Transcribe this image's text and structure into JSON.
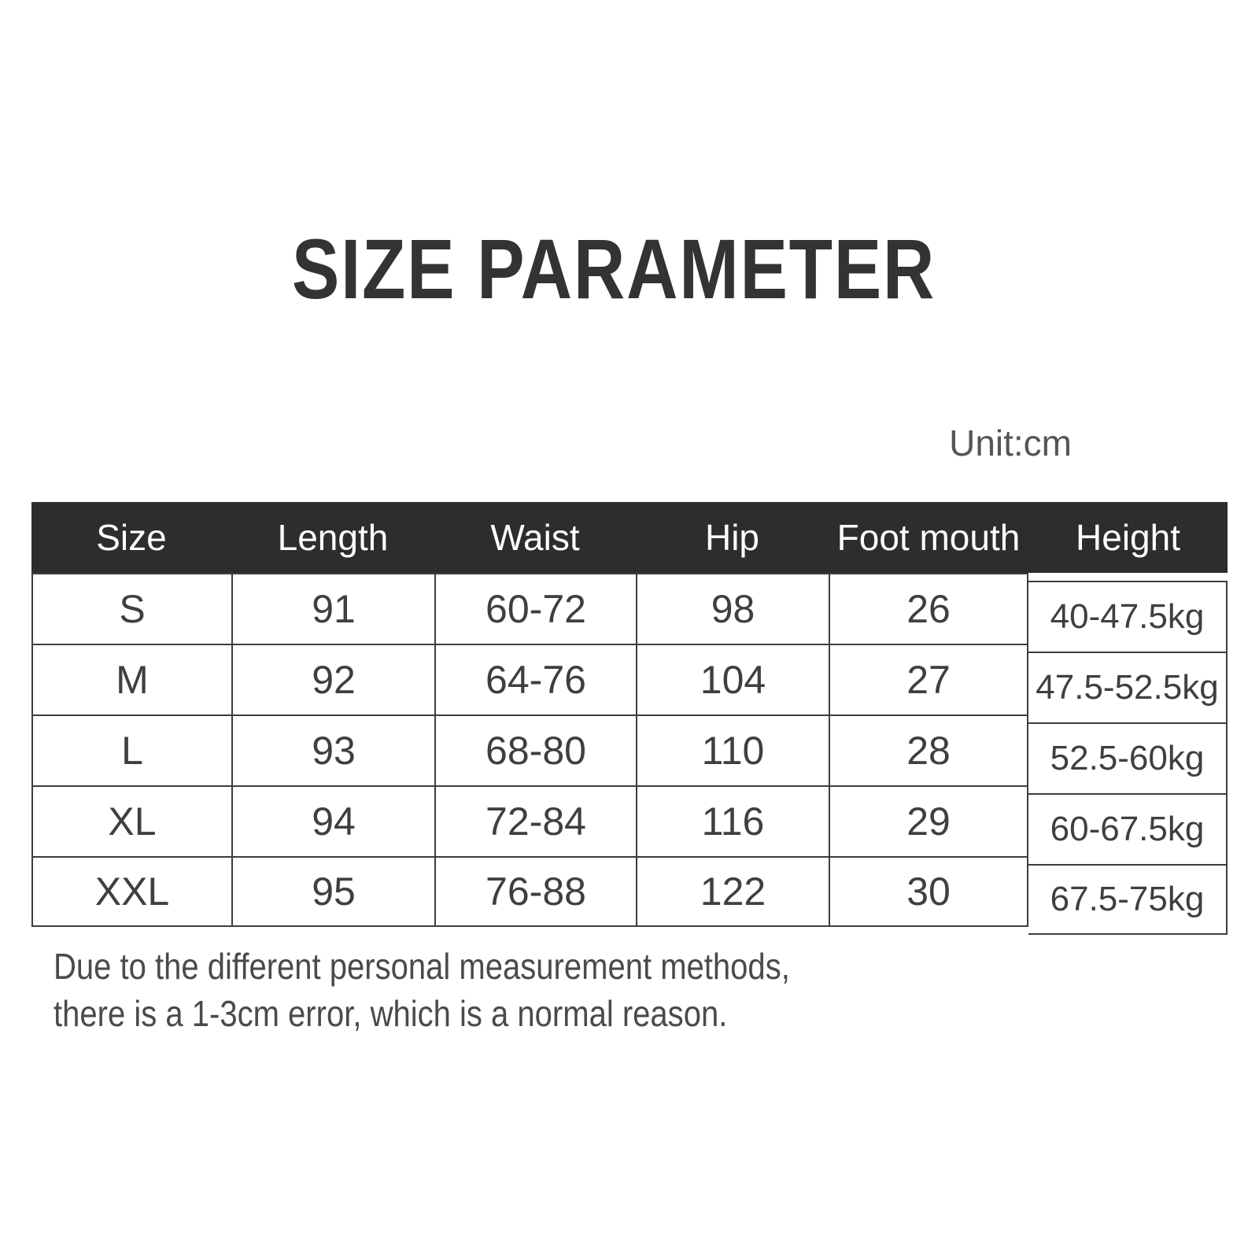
{
  "page": {
    "title": "SIZE PARAMETER",
    "unit_label": "Unit:cm"
  },
  "table": {
    "columns": [
      "Size",
      "Length",
      "Waist",
      "Hip",
      "Foot mouth",
      "Height"
    ],
    "rows": [
      [
        "S",
        "91",
        "60-72",
        "98",
        "26",
        "40-47.5kg"
      ],
      [
        "M",
        "92",
        "64-76",
        "104",
        "27",
        "47.5-52.5kg"
      ],
      [
        "L",
        "93",
        "68-80",
        "110",
        "28",
        "52.5-60kg"
      ],
      [
        "XL",
        "94",
        "72-84",
        "116",
        "29",
        "60-67.5kg"
      ],
      [
        "XXL",
        "95",
        "76-88",
        "122",
        "30",
        "67.5-75kg"
      ]
    ]
  },
  "note": {
    "line1": "Due to the different personal measurement methods,",
    "line2": "there is a 1-3cm error, which is a normal reason."
  },
  "colors": {
    "header_bg": "#2d2d2d",
    "header_text": "#ffffff",
    "border": "#3d3d3d",
    "body_text": "#3f3f3f",
    "title_text": "#333333",
    "note_text": "#4a4a4a"
  }
}
